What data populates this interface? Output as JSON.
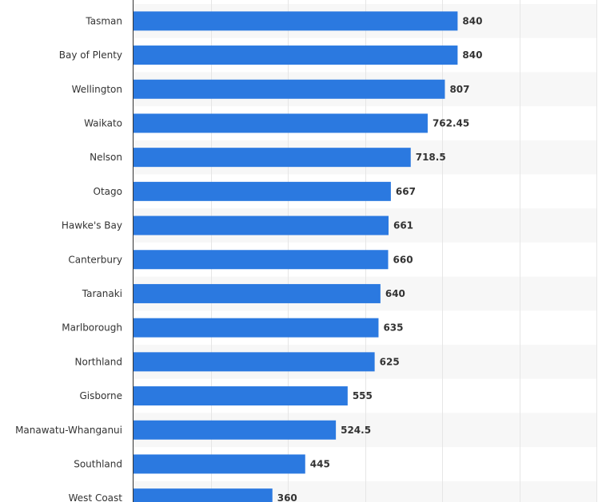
{
  "chart_data": {
    "type": "bar",
    "orientation": "horizontal",
    "categories": [
      "Tasman",
      "Bay of Plenty",
      "Wellington",
      "Waikato",
      "Nelson",
      "Otago",
      "Hawke's Bay",
      "Canterbury",
      "Taranaki",
      "Marlborough",
      "Northland",
      "Gisborne",
      "Manawatu-Whanganui",
      "Southland",
      "West Coast"
    ],
    "values": [
      840,
      840,
      807,
      762.45,
      718.5,
      667,
      661,
      660,
      640,
      635,
      625,
      555,
      524.5,
      445,
      360
    ],
    "value_labels": [
      "840",
      "840",
      "807",
      "762.45",
      "718.5",
      "667",
      "661",
      "660",
      "640",
      "635",
      "625",
      "555",
      "524.5",
      "445",
      "360"
    ],
    "xlim": [
      0,
      1200
    ],
    "grid": true,
    "bar_color": "#2b79e0",
    "band_color": "#f7f7f7",
    "grid_color": "#e6e6e6"
  }
}
